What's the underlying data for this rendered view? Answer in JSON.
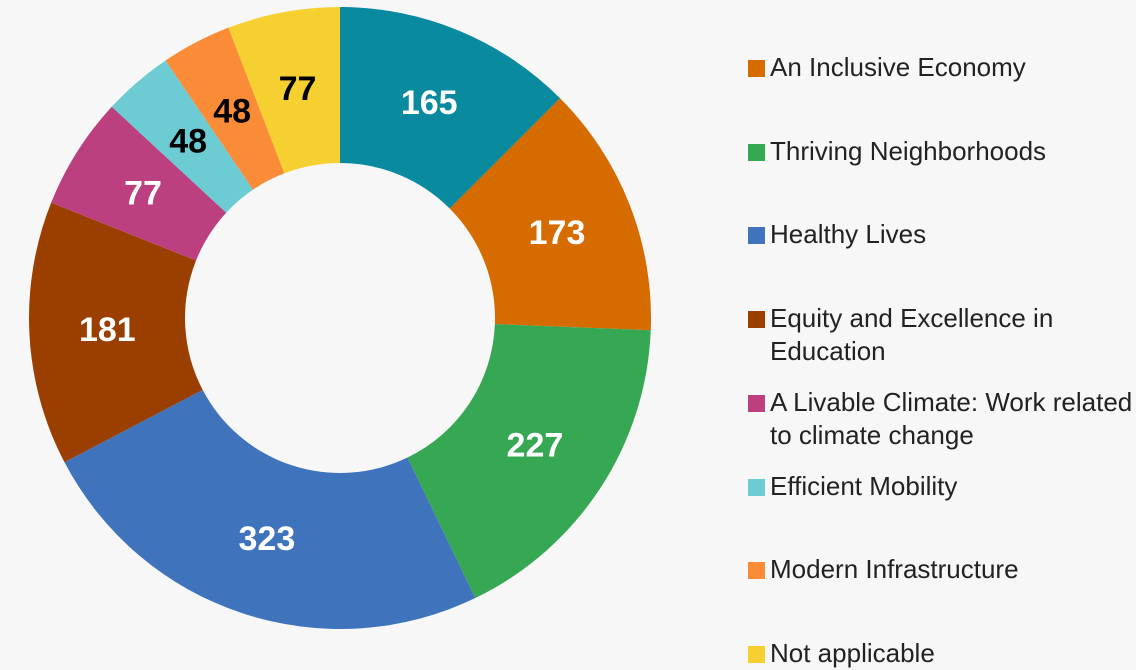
{
  "chart_data": {
    "type": "donut",
    "categories": [
      null,
      "An Inclusive Economy",
      "Thriving Neighborhoods",
      "Healthy Lives",
      "Equity and Excellence in Education",
      "A Livable Climate: Work related to climate change",
      "Efficient Mobility",
      "Modern Infrastructure",
      "Not applicable"
    ],
    "values": [
      165,
      173,
      227,
      323,
      181,
      77,
      48,
      48,
      77
    ],
    "colors": [
      "#0a8a9f",
      "#d66b00",
      "#36a853",
      "#3f74bc",
      "#9a3f00",
      "#bc3f7f",
      "#6ccbd3",
      "#fb8c37",
      "#f6d030"
    ],
    "label_colors": [
      "#ffffff",
      "#ffffff",
      "#ffffff",
      "#ffffff",
      "#ffffff",
      "#ffffff",
      "#000000",
      "#000000",
      "#000000"
    ],
    "legend": "right"
  }
}
